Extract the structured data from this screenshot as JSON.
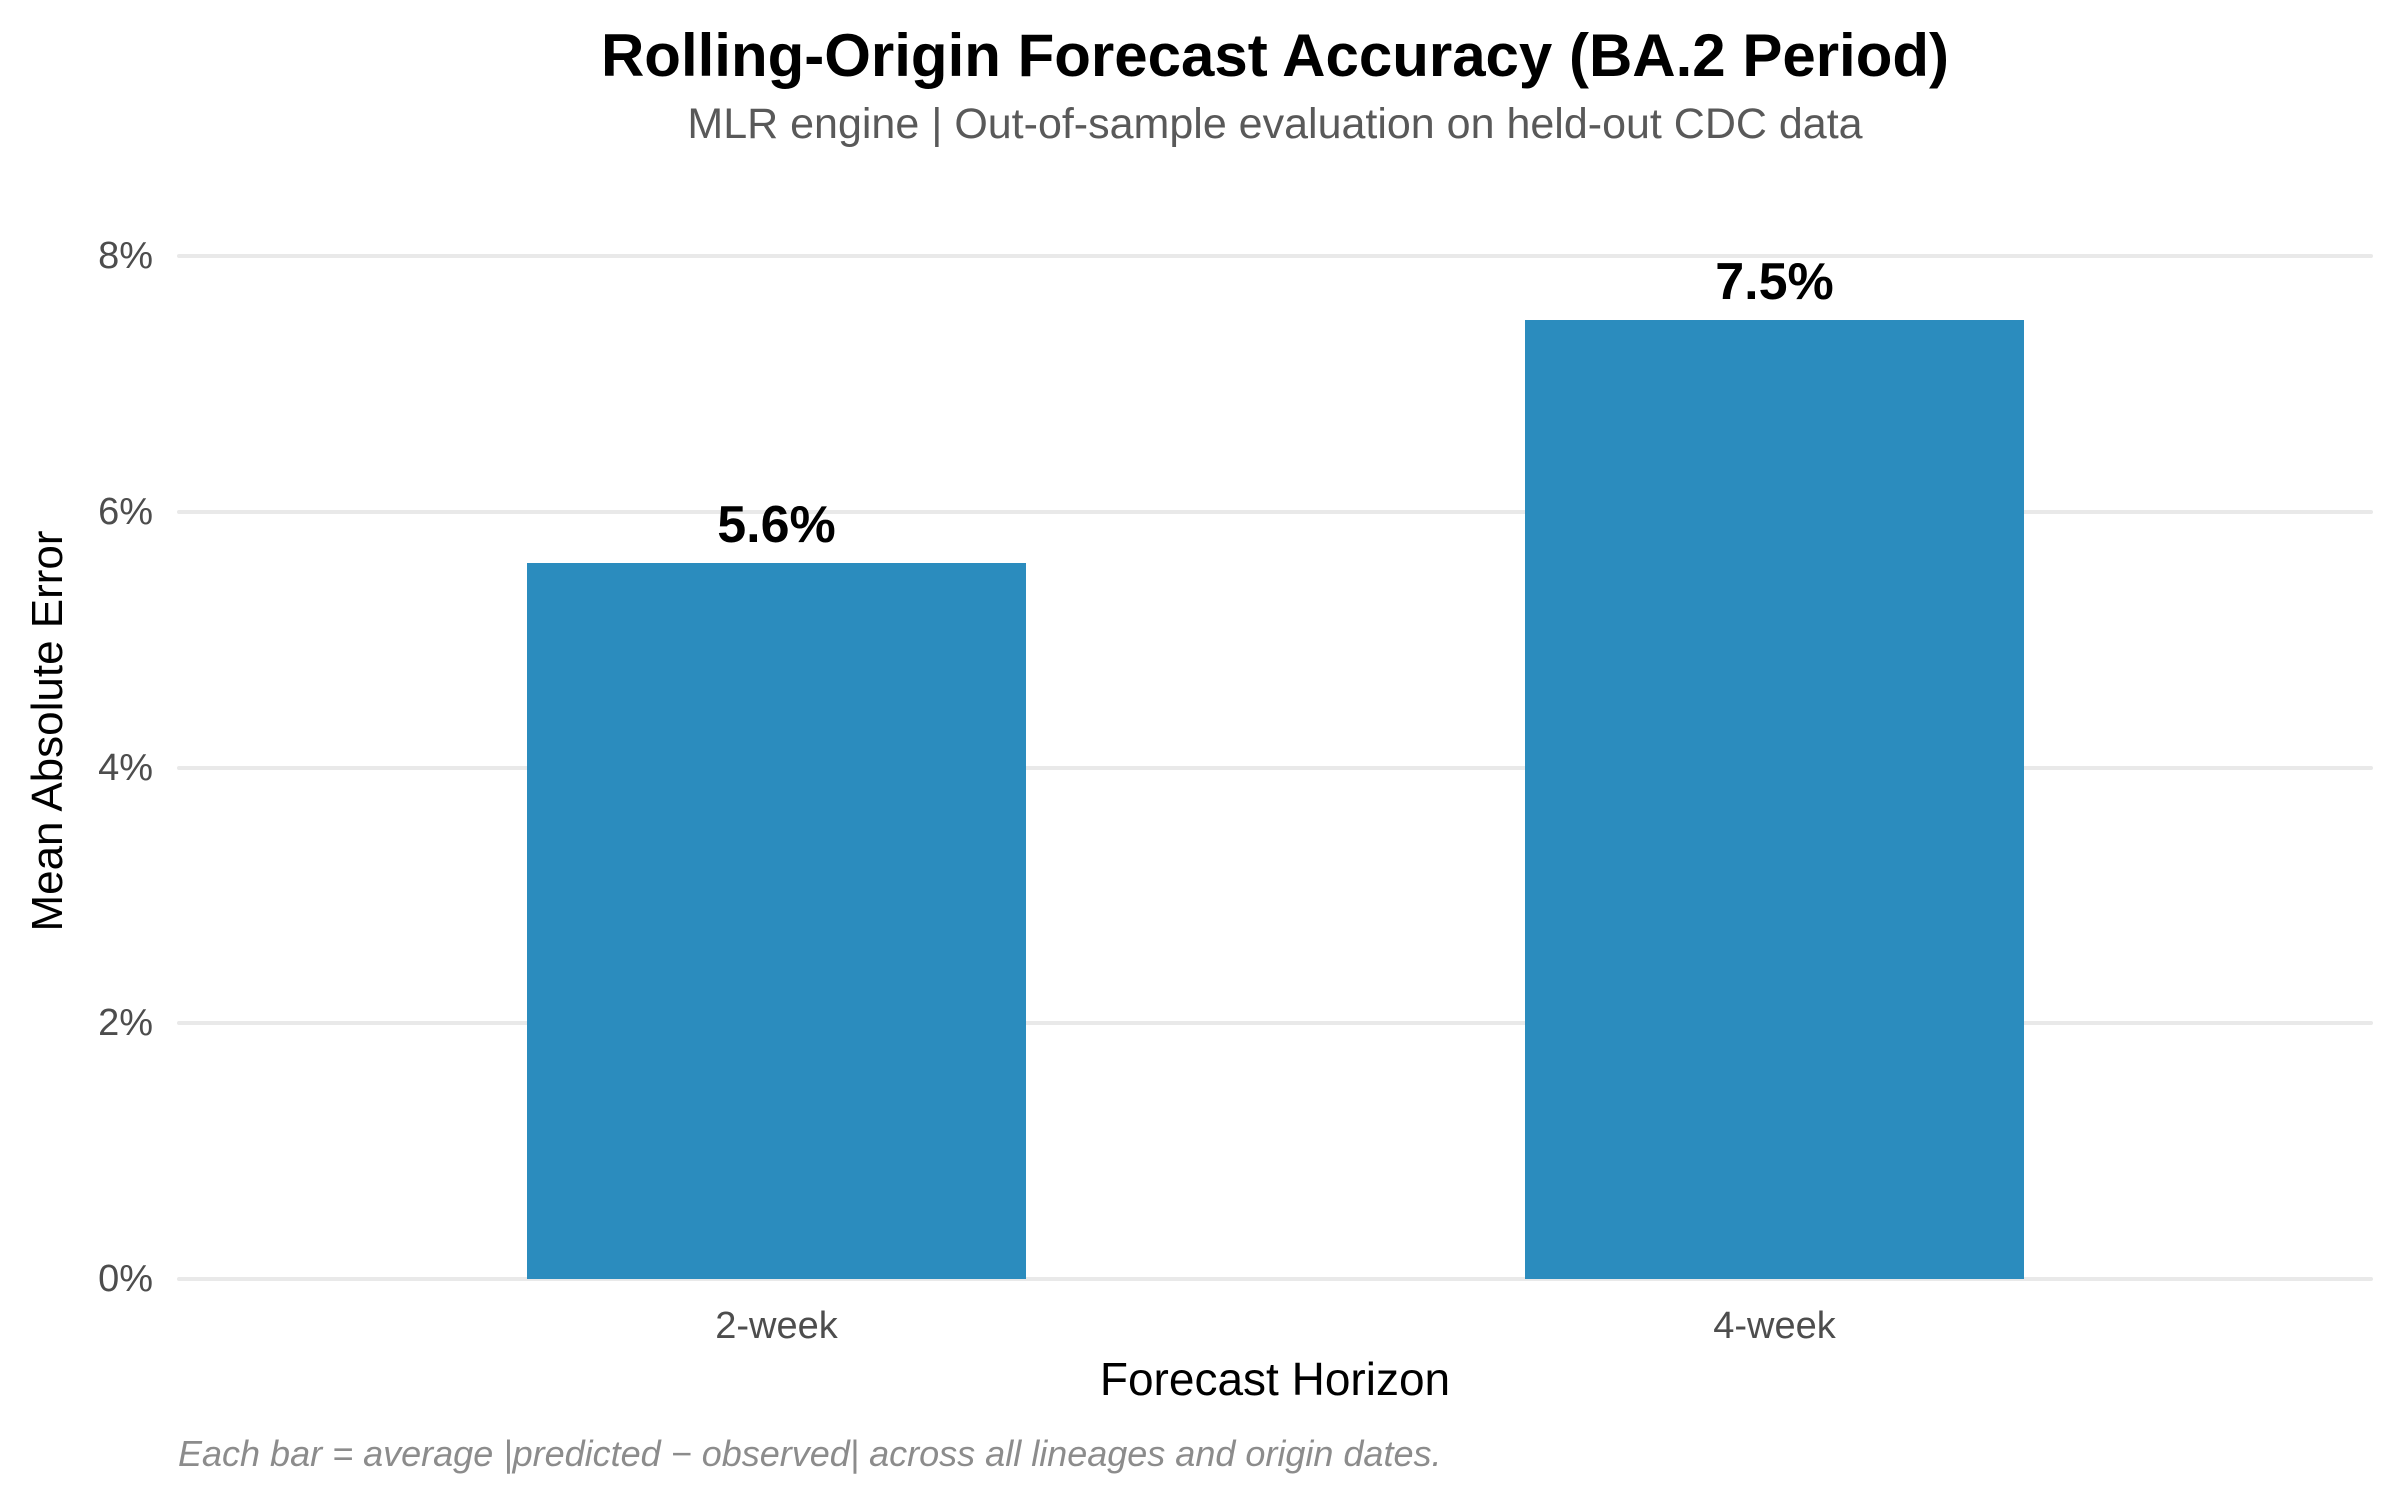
{
  "chart_data": {
    "type": "bar",
    "title": "Rolling-Origin Forecast Accuracy (BA.2 Period)",
    "subtitle": "MLR engine | Out-of-sample evaluation on held-out CDC data",
    "categories": [
      "2-week",
      "4-week"
    ],
    "values": [
      5.6,
      7.5
    ],
    "value_labels": [
      "5.6%",
      "7.5%"
    ],
    "xlabel": "Forecast Horizon",
    "ylabel": "Mean Absolute Error",
    "ylim": [
      0,
      8
    ],
    "yticks": [
      0,
      2,
      4,
      6,
      8
    ],
    "ytick_labels": [
      "0%",
      "2%",
      "4%",
      "6%",
      "8%"
    ],
    "grid": "horizontal-only",
    "legend": "none",
    "footnote": "Each bar = average |predicted − observed| across all lineages and origin dates.",
    "colors": {
      "bar": "#2b8cbe",
      "gridline": "#e9e9e9",
      "tick_label": "#4d4d4d",
      "subtitle": "#595959",
      "footnote": "#8c8c8c",
      "title": "#000000",
      "axis_label": "#000000",
      "background": "#ffffff"
    }
  }
}
